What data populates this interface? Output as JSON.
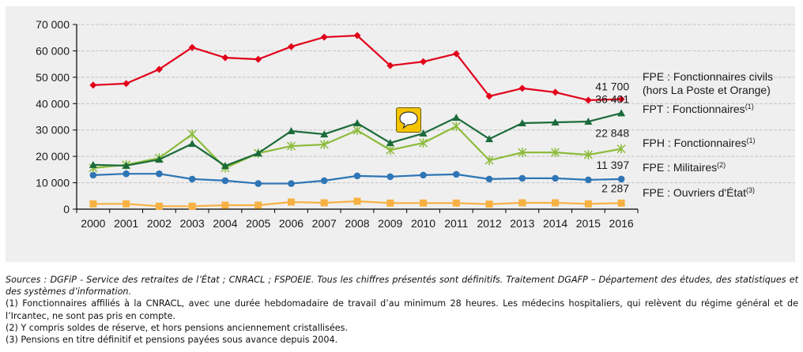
{
  "chart_data": {
    "type": "line",
    "title": "",
    "xlabel": "",
    "ylabel": "",
    "ylim": [
      0,
      70000
    ],
    "yticks": [
      0,
      10000,
      20000,
      30000,
      40000,
      50000,
      60000,
      70000
    ],
    "ytick_labels": [
      "0",
      "10 000",
      "20 000",
      "30 000",
      "40 000",
      "50 000",
      "60 000",
      "70 000"
    ],
    "grid": true,
    "legend_position": "right",
    "categories": [
      "2000",
      "2001",
      "2002",
      "2003",
      "2004",
      "2005",
      "2006",
      "2007",
      "2008",
      "2009",
      "2010",
      "2011",
      "2012",
      "2013",
      "2014",
      "2015",
      "2016"
    ],
    "series": [
      {
        "name": "FPE : Fonctionnaires civils (hors La Poste et Orange)",
        "legend_line1": "FPE : Fonctionnaires civils",
        "legend_line2": "(hors La Poste et Orange)",
        "legend_sup": "",
        "color": "#e2001a",
        "marker": "diamond",
        "values": [
          47000,
          47600,
          53000,
          61300,
          57400,
          56800,
          61600,
          65200,
          65800,
          54400,
          55900,
          58900,
          42800,
          45800,
          44300,
          41300,
          41700
        ],
        "end_label": "41 700"
      },
      {
        "name": "FPT : Fonctionnaires(1)",
        "legend_line1": "FPT : Fonctionnaires",
        "legend_sup": "(1)",
        "color": "#1b6b3a",
        "marker": "triangle",
        "values": [
          16800,
          16500,
          18800,
          24800,
          16400,
          21200,
          29600,
          28400,
          32600,
          25100,
          28700,
          34700,
          26600,
          32600,
          32900,
          33200,
          36401
        ],
        "end_label": "36 401"
      },
      {
        "name": "FPH : Fonctionnaires(1)",
        "legend_line1": "FPH : Fonctionnaires",
        "legend_sup": "(1)",
        "color": "#8dbb3b",
        "marker": "star",
        "values": [
          15600,
          16800,
          19400,
          28400,
          15600,
          21200,
          23900,
          24500,
          29900,
          22400,
          25100,
          31400,
          18500,
          21500,
          21500,
          20600,
          22848
        ],
        "end_label": "22 848"
      },
      {
        "name": "FPE : Militaires(2)",
        "legend_line1": "FPE : Militaires",
        "legend_sup": "(2)",
        "color": "#2e75b6",
        "marker": "circle",
        "values": [
          12900,
          13400,
          13400,
          11400,
          10800,
          9700,
          9700,
          10800,
          12600,
          12300,
          12900,
          13200,
          11400,
          11700,
          11700,
          11100,
          11397
        ],
        "end_label": "11 397"
      },
      {
        "name": "FPE : Ouvriers d'État(3)",
        "legend_line1": "FPE : Ouvriers d'État",
        "legend_sup": "(3)",
        "color": "#f7b142",
        "marker": "square",
        "values": [
          2000,
          2000,
          1100,
          1100,
          1500,
          1500,
          2700,
          2400,
          3000,
          2300,
          2300,
          2300,
          1900,
          2400,
          2400,
          2000,
          2287
        ],
        "end_label": "2 287"
      }
    ]
  },
  "icon": "speech-bubble-comment-icon",
  "notes": {
    "sources": "Sources : DGFiP - Service des retraites de l’État ; CNRACL ; FSPOEIE. Tous les chiffres présentés sont définitifs. Traitement DGAFP – Département des études, des statistiques et des systèmes d’information.",
    "note1": "(1) Fonctionnaires affiliés à la CNRACL, avec une durée hebdomadaire de travail d’au minimum 28 heures. Les médecins hospitaliers, qui relèvent du régime général et de l’Ircantec, ne sont pas pris en compte.",
    "note2": "(2) Y compris soldes de réserve, et hors pensions anciennement cristallisées.",
    "note3": "(3) Pensions en titre définitif et pensions payées sous avance depuis 2004."
  }
}
